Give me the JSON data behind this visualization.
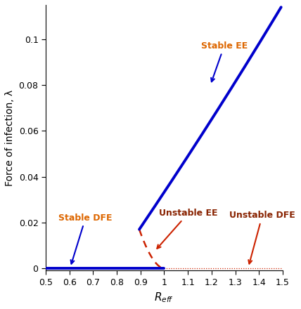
{
  "xlim": [
    0.5,
    1.5
  ],
  "ylim": [
    -0.001,
    0.115
  ],
  "xlabel": "R_eff",
  "ylabel": "Force of infection, λ",
  "xticks": [
    0.5,
    0.6,
    0.7,
    0.8,
    0.9,
    1.0,
    1.1,
    1.2,
    1.3,
    1.4,
    1.5
  ],
  "yticks": [
    0.0,
    0.02,
    0.04,
    0.06,
    0.08,
    0.1
  ],
  "stable_dfe_color": "#0000cc",
  "unstable_dfe_color": "#cc2200",
  "stable_ee_color": "#0000cc",
  "unstable_ee_color": "#cc2200",
  "orange_color": "#dd6600",
  "dark_red_color": "#882200",
  "bifurcation_R": 0.895,
  "bifurcation_lam": 0.017,
  "background_color": "#ffffff"
}
